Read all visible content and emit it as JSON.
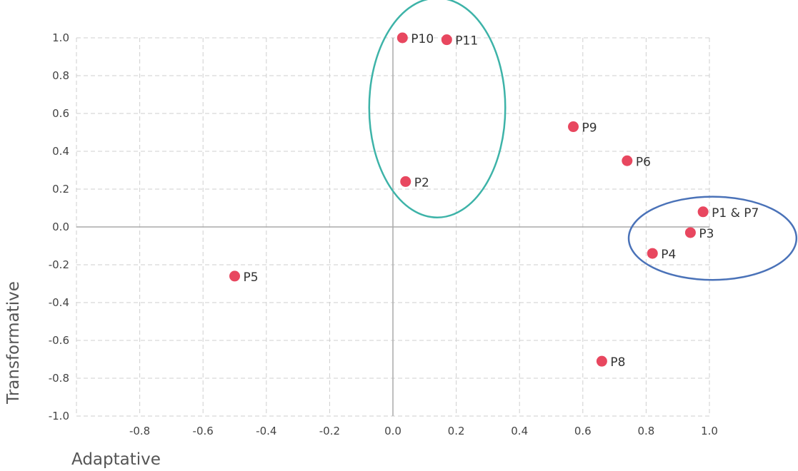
{
  "chart_data": {
    "type": "scatter",
    "xlabel": "Adaptative",
    "ylabel": "Transformative",
    "xlim": [
      -1.0,
      1.0
    ],
    "ylim": [
      -1.0,
      1.0
    ],
    "x_ticks": [
      "-0.8",
      "-0.6",
      "-0.4",
      "-0.2",
      "0.0",
      "0.2",
      "0.4",
      "0.6",
      "0.8",
      "1.0"
    ],
    "y_ticks": [
      "1.0",
      "0.8",
      "0.6",
      "0.4",
      "0.2",
      "0.0",
      "-0.2",
      "-0.4",
      "-0.6",
      "-0.8",
      "-1.0"
    ],
    "grid": true,
    "point_color": "#e8475f",
    "points": [
      {
        "label": "P10",
        "x": 0.03,
        "y": 1.0
      },
      {
        "label": "P11",
        "x": 0.17,
        "y": 0.99
      },
      {
        "label": "P9",
        "x": 0.57,
        "y": 0.53
      },
      {
        "label": "P6",
        "x": 0.74,
        "y": 0.35
      },
      {
        "label": "P2",
        "x": 0.04,
        "y": 0.24
      },
      {
        "label": "P1 & P7",
        "x": 0.98,
        "y": 0.08
      },
      {
        "label": "P3",
        "x": 0.94,
        "y": -0.03
      },
      {
        "label": "P4",
        "x": 0.82,
        "y": -0.14
      },
      {
        "label": "P5",
        "x": -0.5,
        "y": -0.26
      },
      {
        "label": "P8",
        "x": 0.66,
        "y": -0.71
      }
    ],
    "annotations": [
      {
        "shape": "ellipse",
        "color": "#3db3a8",
        "cx": 0.14,
        "cy": 0.63,
        "rx": 0.215,
        "ry": 0.58
      },
      {
        "shape": "ellipse",
        "color": "#4a72b8",
        "cx": 1.01,
        "cy": -0.06,
        "rx": 0.265,
        "ry": 0.22
      }
    ]
  }
}
